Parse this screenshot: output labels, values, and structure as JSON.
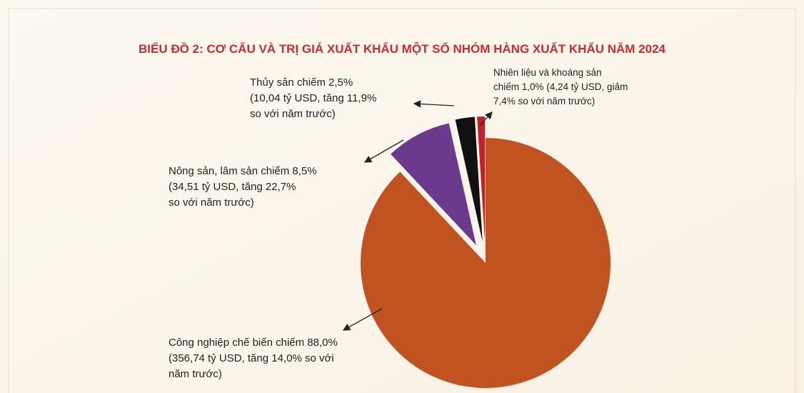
{
  "chart_data": {
    "type": "pie",
    "title": "BIỂU ĐỒ 2: CƠ CẤU VÀ TRỊ GIÁ XUẤT KHẨU MỘT SỐ NHÓM HÀNG XUẤT KHẨU NĂM 2024",
    "categories": [
      [
        "Công nghiệp chế biến chiếm 88,0%",
        "(356,74 tỷ USD, tăng 14,0% so với",
        "năm trước)"
      ],
      [
        "Nông sản, lâm sản chiếm 8,5%",
        "(34,51 tỷ USD, tăng 22,7%",
        "so với năm trước)"
      ],
      [
        "Thủy sản chiếm 2,5%",
        "(10,04 tỷ USD, tăng 11,9%",
        "so với năm trước)"
      ],
      [
        "Nhiên liệu và khoáng sản",
        "chiếm 1,0% (4,24 tỷ USD, giảm",
        "7,4% so với năm trước)"
      ]
    ],
    "values": [
      88.0,
      8.5,
      2.5,
      1.0
    ],
    "colors": [
      "#c0531f",
      "#6a3a8c",
      "#111111",
      "#c4202a"
    ]
  }
}
